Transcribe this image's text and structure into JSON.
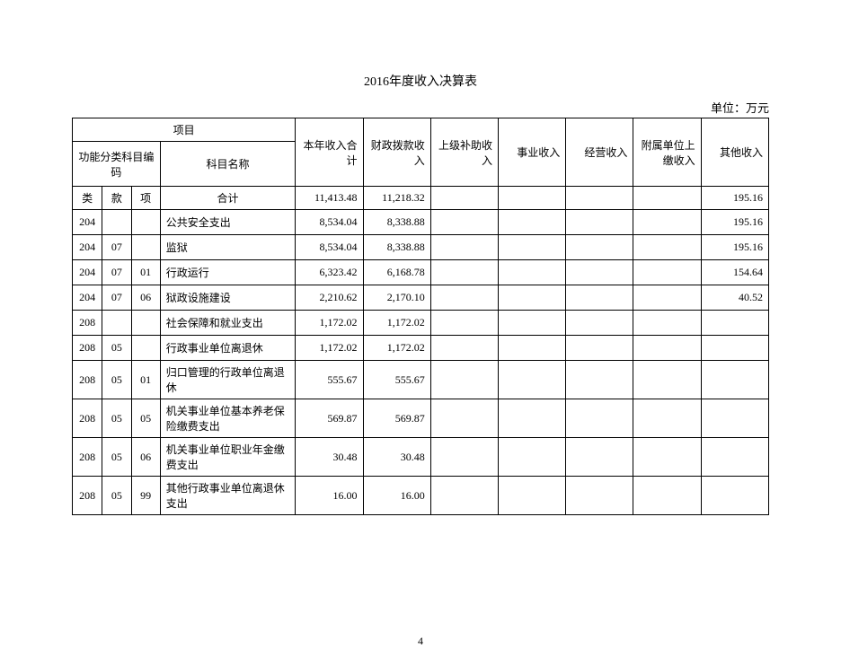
{
  "title": "2016年度收入决算表",
  "unit": "单位：万元",
  "page_number": "4",
  "headers": {
    "project": "项目",
    "code_label": "功能分类科目编码",
    "subject_name": "科目名称",
    "total_income": "本年收入合计",
    "fiscal_allocation": "财政拨款收入",
    "superior_subsidy": "上级补助收入",
    "business_income": "事业收入",
    "operating_income": "经营收入",
    "subordinate_payment": "附属单位上缴收入",
    "other_income": "其他收入",
    "class": "类",
    "section": "款",
    "item": "项",
    "total": "合计"
  },
  "rows": [
    {
      "c1": "",
      "c2": "",
      "c3": "",
      "subject": "合计",
      "total": "11,413.48",
      "fiscal": "11,218.32",
      "superior": "",
      "business": "",
      "operating": "",
      "subordinate": "",
      "other": "195.16"
    },
    {
      "c1": "204",
      "c2": "",
      "c3": "",
      "subject": "公共安全支出",
      "total": "8,534.04",
      "fiscal": "8,338.88",
      "superior": "",
      "business": "",
      "operating": "",
      "subordinate": "",
      "other": "195.16"
    },
    {
      "c1": "204",
      "c2": "07",
      "c3": "",
      "subject": "监狱",
      "total": "8,534.04",
      "fiscal": "8,338.88",
      "superior": "",
      "business": "",
      "operating": "",
      "subordinate": "",
      "other": "195.16"
    },
    {
      "c1": "204",
      "c2": "07",
      "c3": "01",
      "subject": "行政运行",
      "total": "6,323.42",
      "fiscal": "6,168.78",
      "superior": "",
      "business": "",
      "operating": "",
      "subordinate": "",
      "other": "154.64"
    },
    {
      "c1": "204",
      "c2": "07",
      "c3": "06",
      "subject": "狱政设施建设",
      "total": "2,210.62",
      "fiscal": "2,170.10",
      "superior": "",
      "business": "",
      "operating": "",
      "subordinate": "",
      "other": "40.52"
    },
    {
      "c1": "208",
      "c2": "",
      "c3": "",
      "subject": "社会保障和就业支出",
      "total": "1,172.02",
      "fiscal": "1,172.02",
      "superior": "",
      "business": "",
      "operating": "",
      "subordinate": "",
      "other": ""
    },
    {
      "c1": "208",
      "c2": "05",
      "c3": "",
      "subject": "行政事业单位离退休",
      "total": "1,172.02",
      "fiscal": "1,172.02",
      "superior": "",
      "business": "",
      "operating": "",
      "subordinate": "",
      "other": ""
    },
    {
      "c1": "208",
      "c2": "05",
      "c3": "01",
      "subject": "归口管理的行政单位离退休",
      "total": "555.67",
      "fiscal": "555.67",
      "superior": "",
      "business": "",
      "operating": "",
      "subordinate": "",
      "other": ""
    },
    {
      "c1": "208",
      "c2": "05",
      "c3": "05",
      "subject": "机关事业单位基本养老保险缴费支出",
      "total": "569.87",
      "fiscal": "569.87",
      "superior": "",
      "business": "",
      "operating": "",
      "subordinate": "",
      "other": ""
    },
    {
      "c1": "208",
      "c2": "05",
      "c3": "06",
      "subject": "机关事业单位职业年金缴费支出",
      "total": "30.48",
      "fiscal": "30.48",
      "superior": "",
      "business": "",
      "operating": "",
      "subordinate": "",
      "other": ""
    },
    {
      "c1": "208",
      "c2": "05",
      "c3": "99",
      "subject": "其他行政事业单位离退休支出",
      "total": "16.00",
      "fiscal": "16.00",
      "superior": "",
      "business": "",
      "operating": "",
      "subordinate": "",
      "other": ""
    }
  ]
}
